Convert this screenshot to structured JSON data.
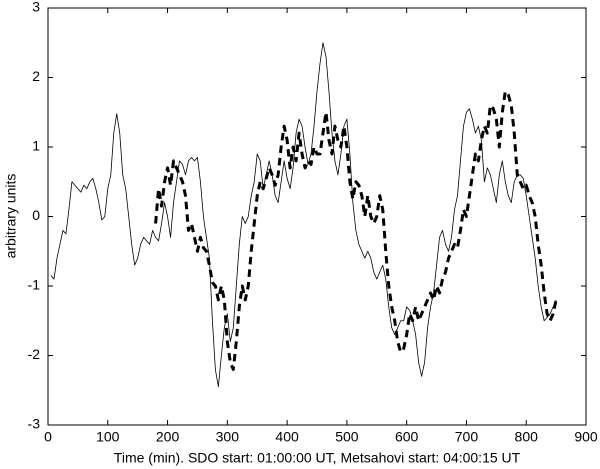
{
  "chart_data": {
    "type": "line",
    "xlabel": "Time (min). SDO start: 01:00:00 UT, Metsahovi start: 04:00:15 UT",
    "ylabel": "arbitrary units",
    "xlim": [
      0,
      900
    ],
    "xticks": [
      0,
      100,
      200,
      300,
      400,
      500,
      600,
      700,
      800,
      900
    ],
    "ylim": [
      -3,
      3
    ],
    "yticks": [
      -3,
      -2,
      -1,
      0,
      1,
      2,
      3
    ],
    "grid": false,
    "x": [
      5,
      10,
      15,
      20,
      25,
      30,
      35,
      40,
      45,
      50,
      55,
      60,
      65,
      70,
      75,
      80,
      85,
      90,
      95,
      100,
      105,
      110,
      115,
      120,
      125,
      130,
      135,
      140,
      145,
      150,
      155,
      160,
      165,
      170,
      175,
      180,
      185,
      190,
      195,
      200,
      205,
      210,
      215,
      220,
      225,
      230,
      235,
      240,
      245,
      250,
      255,
      260,
      265,
      270,
      275,
      280,
      285,
      290,
      295,
      300,
      305,
      310,
      315,
      320,
      325,
      330,
      335,
      340,
      345,
      350,
      355,
      360,
      365,
      370,
      375,
      380,
      385,
      390,
      395,
      400,
      405,
      410,
      415,
      420,
      425,
      430,
      435,
      440,
      445,
      450,
      455,
      460,
      465,
      470,
      475,
      480,
      485,
      490,
      495,
      500,
      505,
      510,
      515,
      520,
      525,
      530,
      535,
      540,
      545,
      550,
      555,
      560,
      565,
      570,
      575,
      580,
      585,
      590,
      595,
      600,
      605,
      610,
      615,
      620,
      625,
      630,
      635,
      640,
      645,
      650,
      655,
      660,
      665,
      670,
      675,
      680,
      685,
      690,
      695,
      700,
      705,
      710,
      715,
      720,
      725,
      730,
      735,
      740,
      745,
      750,
      755,
      760,
      765,
      770,
      775,
      780,
      785,
      790,
      795,
      800,
      805,
      810,
      815,
      820,
      825,
      830,
      835,
      840,
      845,
      850
    ],
    "series": [
      {
        "color": "#000000",
        "line_style": "solid",
        "line_width": 0.8,
        "values": [
          -0.85,
          -0.9,
          -0.6,
          -0.4,
          -0.2,
          -0.25,
          0.1,
          0.5,
          0.45,
          0.4,
          0.35,
          0.45,
          0.4,
          0.5,
          0.55,
          0.4,
          0.2,
          -0.05,
          0.0,
          0.4,
          0.6,
          1.2,
          1.48,
          1.2,
          0.6,
          0.4,
          0.0,
          -0.4,
          -0.7,
          -0.6,
          -0.4,
          -0.3,
          -0.35,
          -0.4,
          -0.2,
          -0.3,
          -0.35,
          -0.1,
          0.2,
          0.0,
          -0.3,
          0.2,
          0.5,
          0.8,
          0.75,
          0.6,
          0.8,
          0.85,
          0.8,
          0.85,
          0.5,
          0.0,
          -0.3,
          -0.6,
          -1.5,
          -2.2,
          -2.45,
          -2.0,
          -1.6,
          -1.4,
          -1.8,
          -1.6,
          -1.0,
          -0.4,
          0.0,
          -0.1,
          0.0,
          0.3,
          0.5,
          0.9,
          0.8,
          0.4,
          0.6,
          0.8,
          0.6,
          0.3,
          0.2,
          0.5,
          0.8,
          0.55,
          0.4,
          0.7,
          1.2,
          1.4,
          1.3,
          1.0,
          0.75,
          0.9,
          1.3,
          1.8,
          2.2,
          2.5,
          2.3,
          1.8,
          1.2,
          0.8,
          0.6,
          0.9,
          1.3,
          1.4,
          0.9,
          0.2,
          -0.2,
          -0.4,
          -0.5,
          -0.6,
          -0.5,
          -0.6,
          -0.8,
          -0.9,
          -0.8,
          -0.7,
          -0.9,
          -1.3,
          -1.6,
          -1.7,
          -1.6,
          -1.5,
          -1.5,
          -1.3,
          -1.35,
          -1.5,
          -1.7,
          -2.1,
          -2.3,
          -2.1,
          -1.6,
          -1.3,
          -1.1,
          -0.7,
          -0.3,
          -0.2,
          -0.4,
          -0.5,
          -0.3,
          0.1,
          0.3,
          0.8,
          1.3,
          1.5,
          1.55,
          1.4,
          1.2,
          1.3,
          1.1,
          0.5,
          0.7,
          0.6,
          0.4,
          0.2,
          0.6,
          0.8,
          0.5,
          0.3,
          0.2,
          0.5,
          0.6,
          0.6,
          0.55,
          0.3,
          0.0,
          -0.3,
          -0.6,
          -1.0,
          -1.3,
          -1.5,
          -1.45,
          -1.4,
          -1.3,
          -1.2
        ]
      },
      {
        "color": "#000000",
        "line_style": "dashed",
        "line_width": 3,
        "values": [
          null,
          null,
          null,
          null,
          null,
          null,
          null,
          null,
          null,
          null,
          null,
          null,
          null,
          null,
          null,
          null,
          null,
          null,
          null,
          null,
          null,
          null,
          null,
          null,
          null,
          null,
          null,
          null,
          null,
          null,
          null,
          null,
          null,
          null,
          null,
          -0.1,
          0.4,
          0.15,
          0.5,
          0.7,
          0.45,
          0.8,
          0.7,
          0.6,
          0.5,
          0.3,
          -0.2,
          -0.1,
          -0.3,
          -0.5,
          -0.3,
          -0.45,
          -0.5,
          -0.7,
          -0.95,
          -1.0,
          -1.2,
          -1.0,
          -1.2,
          -1.8,
          -2.1,
          -2.2,
          -1.8,
          -1.3,
          -1.0,
          -1.2,
          -1.0,
          -0.5,
          -0.1,
          0.3,
          0.5,
          0.4,
          0.55,
          0.7,
          0.6,
          0.45,
          0.6,
          1.0,
          1.3,
          1.1,
          0.7,
          1.0,
          0.8,
          1.2,
          0.9,
          0.7,
          0.8,
          0.75,
          1.0,
          0.9,
          0.9,
          1.2,
          1.5,
          1.1,
          0.9,
          1.3,
          1.1,
          1.0,
          1.3,
          1.0,
          0.5,
          0.25,
          0.5,
          0.45,
          0.3,
          0.0,
          0.3,
          0.0,
          -0.1,
          0.0,
          0.3,
          0.1,
          -0.5,
          -1.0,
          -1.3,
          -1.5,
          -1.8,
          -1.95,
          -1.9,
          -1.7,
          -1.4,
          -1.5,
          -1.3,
          -1.5,
          -1.4,
          -1.3,
          -1.2,
          -1.1,
          -1.2,
          -1.0,
          -1.1,
          -0.9,
          -0.8,
          -0.6,
          -0.5,
          -0.4,
          -0.45,
          -0.2,
          0.1,
          0.0,
          0.3,
          0.6,
          0.9,
          0.8,
          1.1,
          1.3,
          1.2,
          1.6,
          1.55,
          1.4,
          1.0,
          1.5,
          1.8,
          1.75,
          1.6,
          1.2,
          0.6,
          0.5,
          0.4,
          0.45,
          0.3,
          0.2,
          0.0,
          -0.4,
          -0.7,
          -1.1,
          -1.4,
          -1.5,
          -1.4,
          -1.2
        ]
      }
    ]
  }
}
